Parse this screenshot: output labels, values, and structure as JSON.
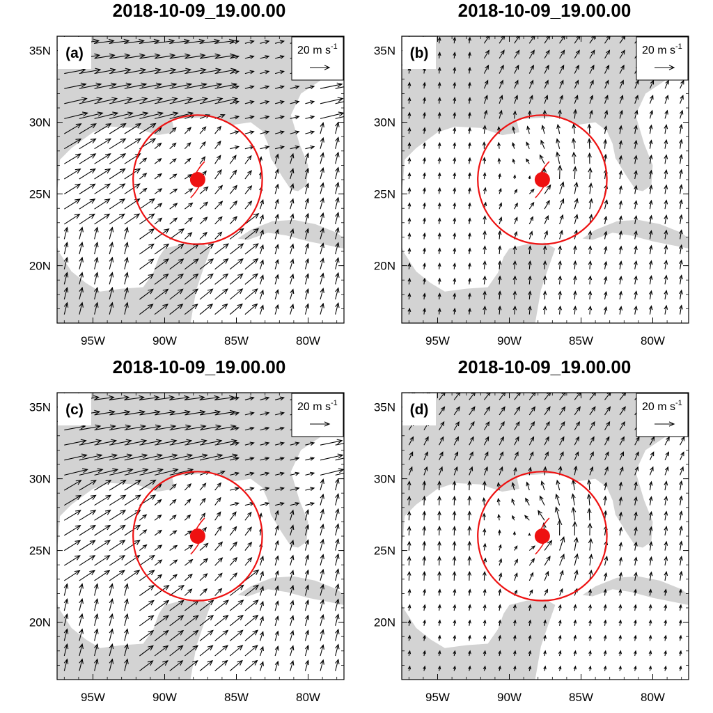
{
  "figure": {
    "panels": [
      {
        "id": "a",
        "label": "(a)",
        "title": "2018-10-09_19.00.00",
        "style": "strong_sw"
      },
      {
        "id": "b",
        "label": "(b)",
        "title": "2018-10-09_19.00.00",
        "style": "weak_cyclone"
      },
      {
        "id": "c",
        "label": "(c)",
        "title": "2018-10-09_19.00.00",
        "style": "strong_sw"
      },
      {
        "id": "d",
        "label": "(d)",
        "title": "2018-10-09_19.00.00",
        "style": "sparse"
      }
    ],
    "reference_vector": {
      "label": "20 m s",
      "superscript": "-1",
      "magnitude_ms": 20
    },
    "axes": {
      "lon_range": [
        -97.5,
        -77.5
      ],
      "lat_range": [
        16,
        36
      ],
      "x_ticks": [
        {
          "value": -95,
          "label": "95W"
        },
        {
          "value": -90,
          "label": "90W"
        },
        {
          "value": -85,
          "label": "85W"
        },
        {
          "value": -80,
          "label": "80W"
        }
      ],
      "y_ticks": [
        {
          "value": 35,
          "label": "35N"
        },
        {
          "value": 30,
          "label": "30N"
        },
        {
          "value": 25,
          "label": "25N"
        },
        {
          "value": 20,
          "label": "20N"
        }
      ]
    },
    "storm": {
      "lon": -87.7,
      "lat": 26.0,
      "circle_radius_deg": 4.5,
      "color": "#ee1111"
    },
    "colors": {
      "land": "#d3d3d3",
      "ocean": "#ffffff",
      "arrow": "#000000",
      "storm": "#ee1111"
    }
  }
}
